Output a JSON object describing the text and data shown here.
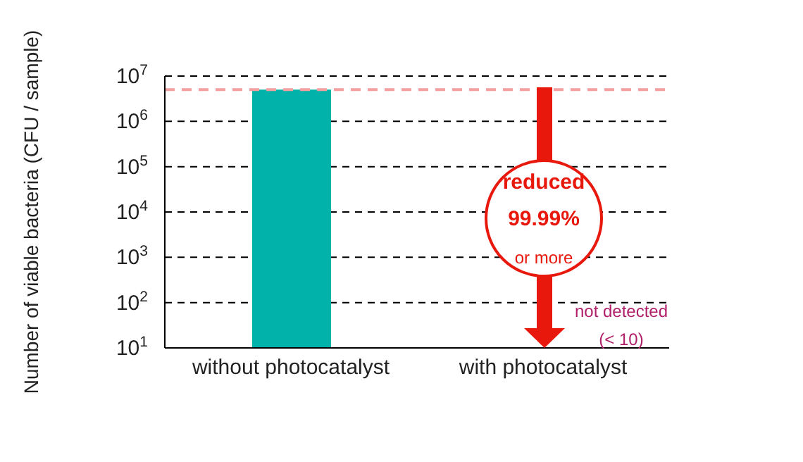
{
  "chart_data": {
    "type": "bar",
    "ylabel": "Number of viable bacteria (CFU / sample)",
    "categories": [
      "without photocatalyst",
      "with photocatalyst"
    ],
    "values": [
      5000000,
      null
    ],
    "color": "#00b2a9",
    "log": true,
    "ylim": [
      10,
      10000000
    ],
    "yticks": [
      {
        "value": 10,
        "label": "10$^{1}$"
      },
      {
        "value": 100,
        "label": "10$^{2}$"
      },
      {
        "value": 1000,
        "label": "10$^{3}$"
      },
      {
        "value": 10000,
        "label": "10$^{4}$"
      },
      {
        "value": 100000,
        "label": "10$^{5}$"
      },
      {
        "value": 1000000,
        "label": "10$^{6}$"
      },
      {
        "value": 10000000,
        "label": "10$^{7}$"
      }
    ],
    "grid": "y",
    "ref_lines": [
      {
        "axis": "y",
        "value": 5000000,
        "label": null,
        "color": "#f4a0a0",
        "line_style": "dashed"
      }
    ],
    "annotations": [
      "reduced",
      "99.99%",
      "or more",
      "not detected",
      "(< 10)"
    ]
  }
}
